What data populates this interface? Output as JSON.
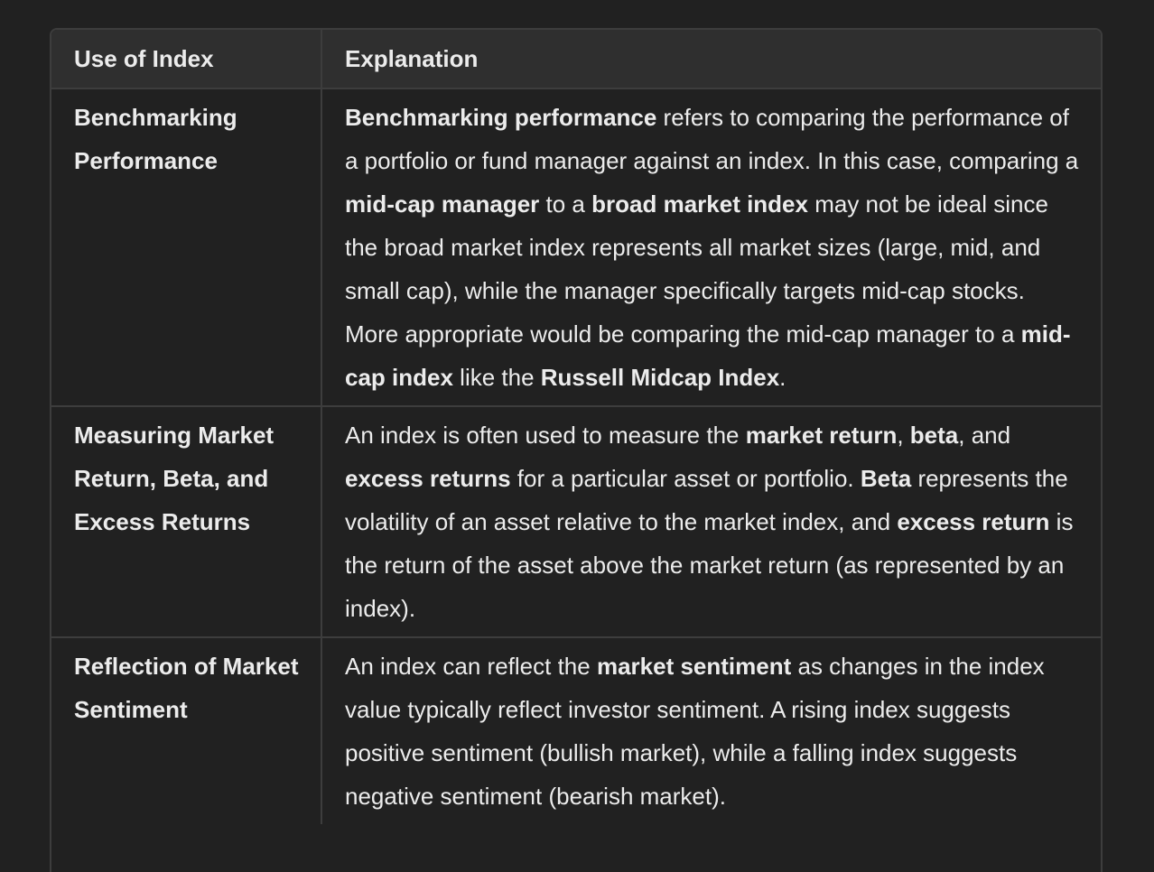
{
  "table": {
    "headers": [
      "Use of Index",
      "Explanation"
    ],
    "rows": [
      {
        "use": "Benchmarking Performance",
        "segments": [
          {
            "t": "Benchmarking performance",
            "b": true
          },
          {
            "t": " refers to comparing the performance of a portfolio or fund manager against an index. In this case, comparing a ",
            "b": false
          },
          {
            "t": "mid-cap manager",
            "b": true
          },
          {
            "t": " to a ",
            "b": false
          },
          {
            "t": "broad market index",
            "b": true
          },
          {
            "t": " may not be ideal since the broad market index represents all market sizes (large, mid, and small cap), while the manager specifically targets mid-cap stocks. More appropriate would be comparing the mid-cap manager to a ",
            "b": false
          },
          {
            "t": "mid-cap index",
            "b": true
          },
          {
            "t": " like the ",
            "b": false
          },
          {
            "t": "Russell Midcap Index",
            "b": true
          },
          {
            "t": ".",
            "b": false
          }
        ]
      },
      {
        "use": "Measuring Market Return, Beta, and Excess Returns",
        "segments": [
          {
            "t": "An index is often used to measure the ",
            "b": false
          },
          {
            "t": "market return",
            "b": true
          },
          {
            "t": ", ",
            "b": false
          },
          {
            "t": "beta",
            "b": true
          },
          {
            "t": ", and ",
            "b": false
          },
          {
            "t": "excess returns",
            "b": true
          },
          {
            "t": " for a particular asset or portfolio. ",
            "b": false
          },
          {
            "t": "Beta",
            "b": true
          },
          {
            "t": " represents the volatility of an asset relative to the market index, and ",
            "b": false
          },
          {
            "t": "excess return",
            "b": true
          },
          {
            "t": " is the return of the asset above the market return (as represented by an index).",
            "b": false
          }
        ]
      },
      {
        "use": "Reflection of Market Sentiment",
        "segments": [
          {
            "t": "An index can reflect the ",
            "b": false
          },
          {
            "t": "market sentiment",
            "b": true
          },
          {
            "t": " as changes in the index value typically reflect investor sentiment. A rising index suggests positive sentiment (bullish market), while a falling index suggests negative sentiment (bearish market).",
            "b": false
          }
        ]
      }
    ]
  }
}
